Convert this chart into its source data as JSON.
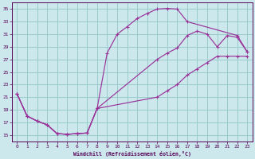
{
  "xlabel": "Windchill (Refroidissement éolien,°C)",
  "background_color": "#cce8ec",
  "grid_color": "#99cccc",
  "line_color": "#993399",
  "xlim": [
    -0.5,
    23.5
  ],
  "ylim": [
    14,
    36
  ],
  "xticks": [
    0,
    1,
    2,
    3,
    4,
    5,
    6,
    7,
    8,
    9,
    10,
    11,
    12,
    13,
    14,
    15,
    16,
    17,
    18,
    19,
    20,
    21,
    22,
    23
  ],
  "yticks": [
    15,
    17,
    19,
    21,
    23,
    25,
    27,
    29,
    31,
    33,
    35
  ],
  "line1_x": [
    0,
    1,
    2,
    3,
    4,
    5,
    6,
    7,
    8,
    9,
    10,
    11,
    12,
    13,
    14,
    15,
    16,
    17,
    22,
    23
  ],
  "line1_y": [
    21.5,
    18.0,
    17.2,
    16.6,
    15.2,
    15.1,
    15.2,
    15.3,
    19.2,
    28.0,
    31.0,
    32.2,
    33.5,
    34.3,
    35.0,
    35.1,
    35.0,
    33.0,
    30.8,
    28.2
  ],
  "line2_x": [
    0,
    1,
    2,
    3,
    4,
    5,
    6,
    7,
    8,
    14,
    15,
    16,
    17,
    18,
    19,
    20,
    21,
    22,
    23
  ],
  "line2_y": [
    21.5,
    18.0,
    17.2,
    16.6,
    15.2,
    15.1,
    15.2,
    15.3,
    19.2,
    27.0,
    28.0,
    28.8,
    30.8,
    31.5,
    31.0,
    29.0,
    30.8,
    30.5,
    28.2
  ],
  "line3_x": [
    0,
    1,
    2,
    3,
    4,
    5,
    6,
    7,
    8,
    14,
    15,
    16,
    17,
    18,
    19,
    20,
    21,
    22,
    23
  ],
  "line3_y": [
    21.5,
    18.0,
    17.2,
    16.6,
    15.2,
    15.1,
    15.2,
    15.3,
    19.2,
    21.0,
    22.0,
    23.0,
    24.5,
    25.5,
    26.5,
    27.5,
    27.5,
    27.5,
    27.5
  ]
}
